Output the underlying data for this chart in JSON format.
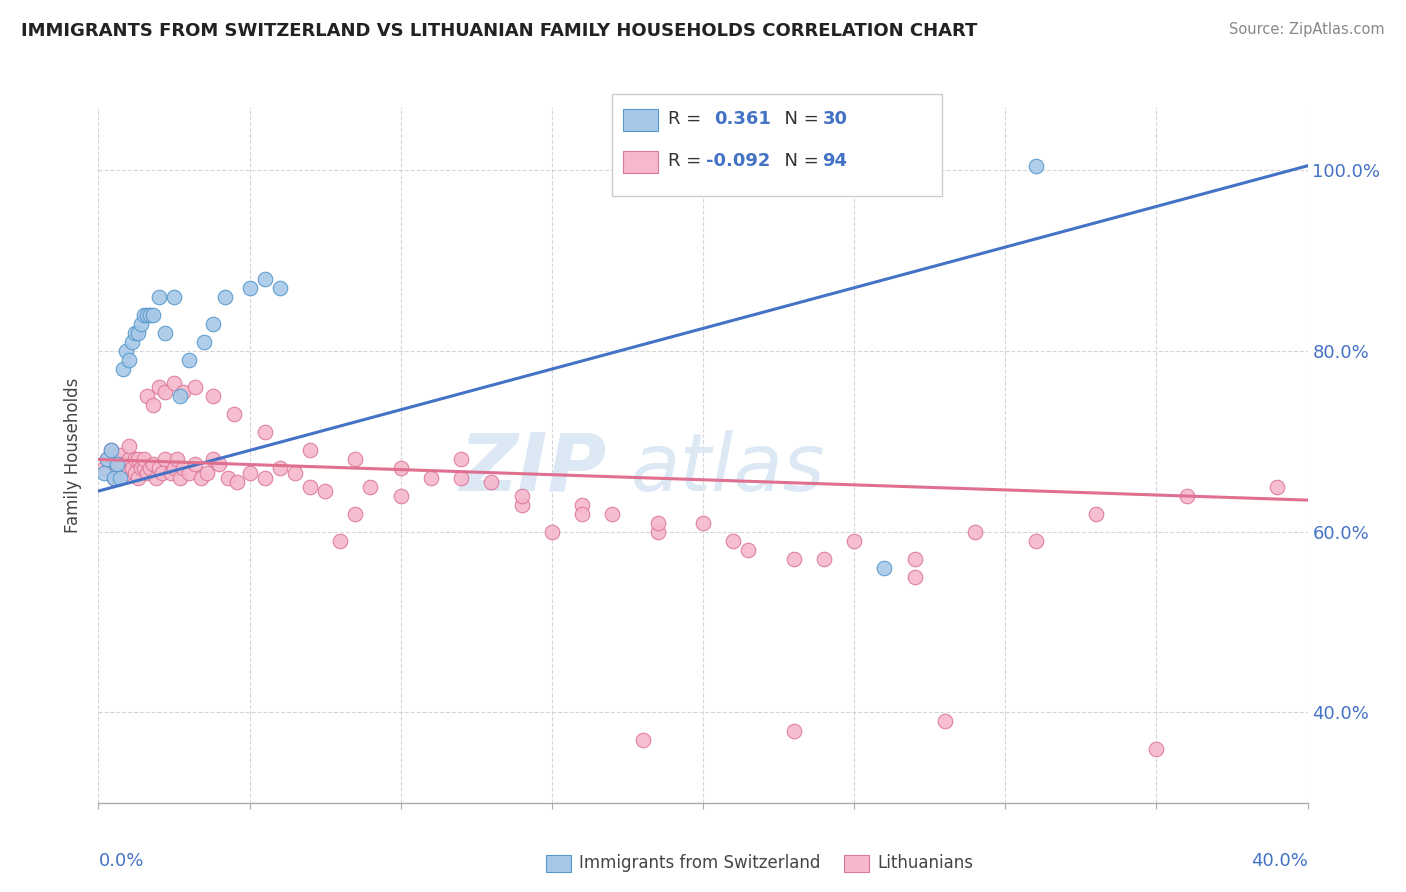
{
  "title": "IMMIGRANTS FROM SWITZERLAND VS LITHUANIAN FAMILY HOUSEHOLDS CORRELATION CHART",
  "source": "Source: ZipAtlas.com",
  "ylabel": "Family Households",
  "yaxis_ticks": [
    "40.0%",
    "60.0%",
    "80.0%",
    "100.0%"
  ],
  "yaxis_values": [
    0.4,
    0.6,
    0.8,
    1.0
  ],
  "xlim": [
    0.0,
    0.4
  ],
  "ylim": [
    0.3,
    1.07
  ],
  "legend_r_swiss": "0.361",
  "legend_n_swiss": "30",
  "legend_r_lith": "-0.092",
  "legend_n_lith": "94",
  "swiss_color": "#a8c8e8",
  "swiss_edge_color": "#5599cc",
  "swiss_line_color": "#4472c4",
  "lith_color": "#f5b8cc",
  "lith_edge_color": "#dd7799",
  "lith_line_color": "#e07090",
  "background_color": "#ffffff",
  "swiss_points_x": [
    0.002,
    0.003,
    0.004,
    0.005,
    0.006,
    0.007,
    0.008,
    0.009,
    0.01,
    0.011,
    0.012,
    0.013,
    0.014,
    0.015,
    0.016,
    0.017,
    0.018,
    0.02,
    0.022,
    0.025,
    0.027,
    0.03,
    0.035,
    0.038,
    0.042,
    0.05,
    0.055,
    0.06,
    0.26,
    0.31
  ],
  "swiss_points_y": [
    0.665,
    0.68,
    0.69,
    0.66,
    0.675,
    0.66,
    0.78,
    0.8,
    0.79,
    0.81,
    0.82,
    0.82,
    0.83,
    0.84,
    0.84,
    0.84,
    0.84,
    0.86,
    0.82,
    0.86,
    0.75,
    0.79,
    0.81,
    0.83,
    0.86,
    0.87,
    0.88,
    0.87,
    0.56,
    1.005
  ],
  "lith_points_x": [
    0.002,
    0.003,
    0.004,
    0.005,
    0.005,
    0.006,
    0.007,
    0.007,
    0.008,
    0.009,
    0.01,
    0.01,
    0.011,
    0.012,
    0.012,
    0.013,
    0.013,
    0.014,
    0.015,
    0.015,
    0.016,
    0.017,
    0.018,
    0.019,
    0.02,
    0.021,
    0.022,
    0.024,
    0.025,
    0.026,
    0.027,
    0.028,
    0.03,
    0.032,
    0.034,
    0.036,
    0.038,
    0.04,
    0.043,
    0.046,
    0.05,
    0.055,
    0.06,
    0.065,
    0.07,
    0.075,
    0.08,
    0.085,
    0.09,
    0.1,
    0.11,
    0.12,
    0.13,
    0.14,
    0.15,
    0.16,
    0.17,
    0.185,
    0.2,
    0.215,
    0.23,
    0.25,
    0.27,
    0.29,
    0.31,
    0.33,
    0.36,
    0.39,
    0.016,
    0.018,
    0.02,
    0.022,
    0.025,
    0.028,
    0.032,
    0.038,
    0.045,
    0.055,
    0.07,
    0.085,
    0.1,
    0.12,
    0.14,
    0.16,
    0.185,
    0.21,
    0.24,
    0.27,
    0.18,
    0.23,
    0.28,
    0.35
  ],
  "lith_points_y": [
    0.67,
    0.68,
    0.69,
    0.66,
    0.68,
    0.67,
    0.665,
    0.685,
    0.675,
    0.665,
    0.68,
    0.695,
    0.67,
    0.665,
    0.68,
    0.66,
    0.68,
    0.67,
    0.67,
    0.68,
    0.665,
    0.67,
    0.675,
    0.66,
    0.67,
    0.665,
    0.68,
    0.665,
    0.67,
    0.68,
    0.66,
    0.67,
    0.665,
    0.675,
    0.66,
    0.665,
    0.68,
    0.675,
    0.66,
    0.655,
    0.665,
    0.66,
    0.67,
    0.665,
    0.65,
    0.645,
    0.59,
    0.62,
    0.65,
    0.64,
    0.66,
    0.68,
    0.655,
    0.63,
    0.6,
    0.63,
    0.62,
    0.6,
    0.61,
    0.58,
    0.57,
    0.59,
    0.57,
    0.6,
    0.59,
    0.62,
    0.64,
    0.65,
    0.75,
    0.74,
    0.76,
    0.755,
    0.765,
    0.755,
    0.76,
    0.75,
    0.73,
    0.71,
    0.69,
    0.68,
    0.67,
    0.66,
    0.64,
    0.62,
    0.61,
    0.59,
    0.57,
    0.55,
    0.37,
    0.38,
    0.39,
    0.36
  ]
}
